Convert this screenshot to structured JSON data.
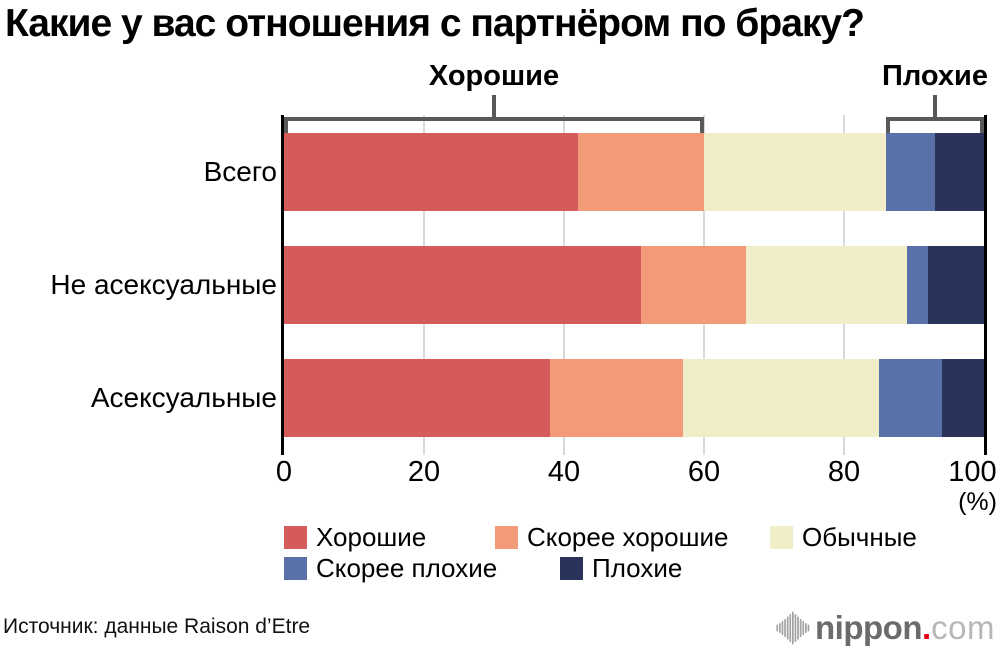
{
  "title": "Какие у вас отношения с партнёром по браку?",
  "chart_data": {
    "type": "bar",
    "orientation": "horizontal",
    "stacked": true,
    "title": "Какие у вас отношения с партнёром по браку?",
    "categories": [
      "Всего",
      "Не асексуальные",
      "Асексуальные"
    ],
    "series": [
      {
        "name": "Хорошие",
        "color": "#d55a5a",
        "values": [
          42,
          51,
          38
        ]
      },
      {
        "name": "Скорее хорошие",
        "color": "#f29b79",
        "values": [
          18,
          15,
          19
        ]
      },
      {
        "name": "Обычные",
        "color": "#f0eec8",
        "values": [
          26,
          23,
          28
        ]
      },
      {
        "name": "Скорее плохие",
        "color": "#5a70a9",
        "values": [
          7,
          3,
          9
        ]
      },
      {
        "name": "Плохие",
        "color": "#2a3359",
        "values": [
          7,
          8,
          6
        ]
      }
    ],
    "x_ticks": [
      "0",
      "20",
      "40",
      "60",
      "80",
      "100"
    ],
    "x_tick_values": [
      0,
      20,
      40,
      60,
      80,
      100
    ],
    "x_unit_label": "(%)",
    "xlim": [
      0,
      100
    ],
    "grid": true,
    "legend_position": "bottom",
    "legend_rows": [
      [
        0,
        1,
        2
      ],
      [
        3,
        4
      ]
    ],
    "brackets": [
      {
        "label": "Хорошие",
        "from": 0,
        "to": 60
      },
      {
        "label": "Плохие",
        "from": 86,
        "to": 100
      }
    ]
  },
  "colors": {
    "bracket": "#595959",
    "gridline": "#d9d9d9",
    "axis": "#000000",
    "logo_gray": "#6b6b6b",
    "logo_light_gray": "#b7b7b7",
    "logo_dot_red": "#e60012",
    "soundwave_gray": "#a2a2a2"
  },
  "footer": {
    "source": "Источник: данные Raison d’Etre",
    "logo": {
      "icon": "soundwave-icon",
      "name": "nippon",
      "dot": ".",
      "tld": "com"
    }
  }
}
